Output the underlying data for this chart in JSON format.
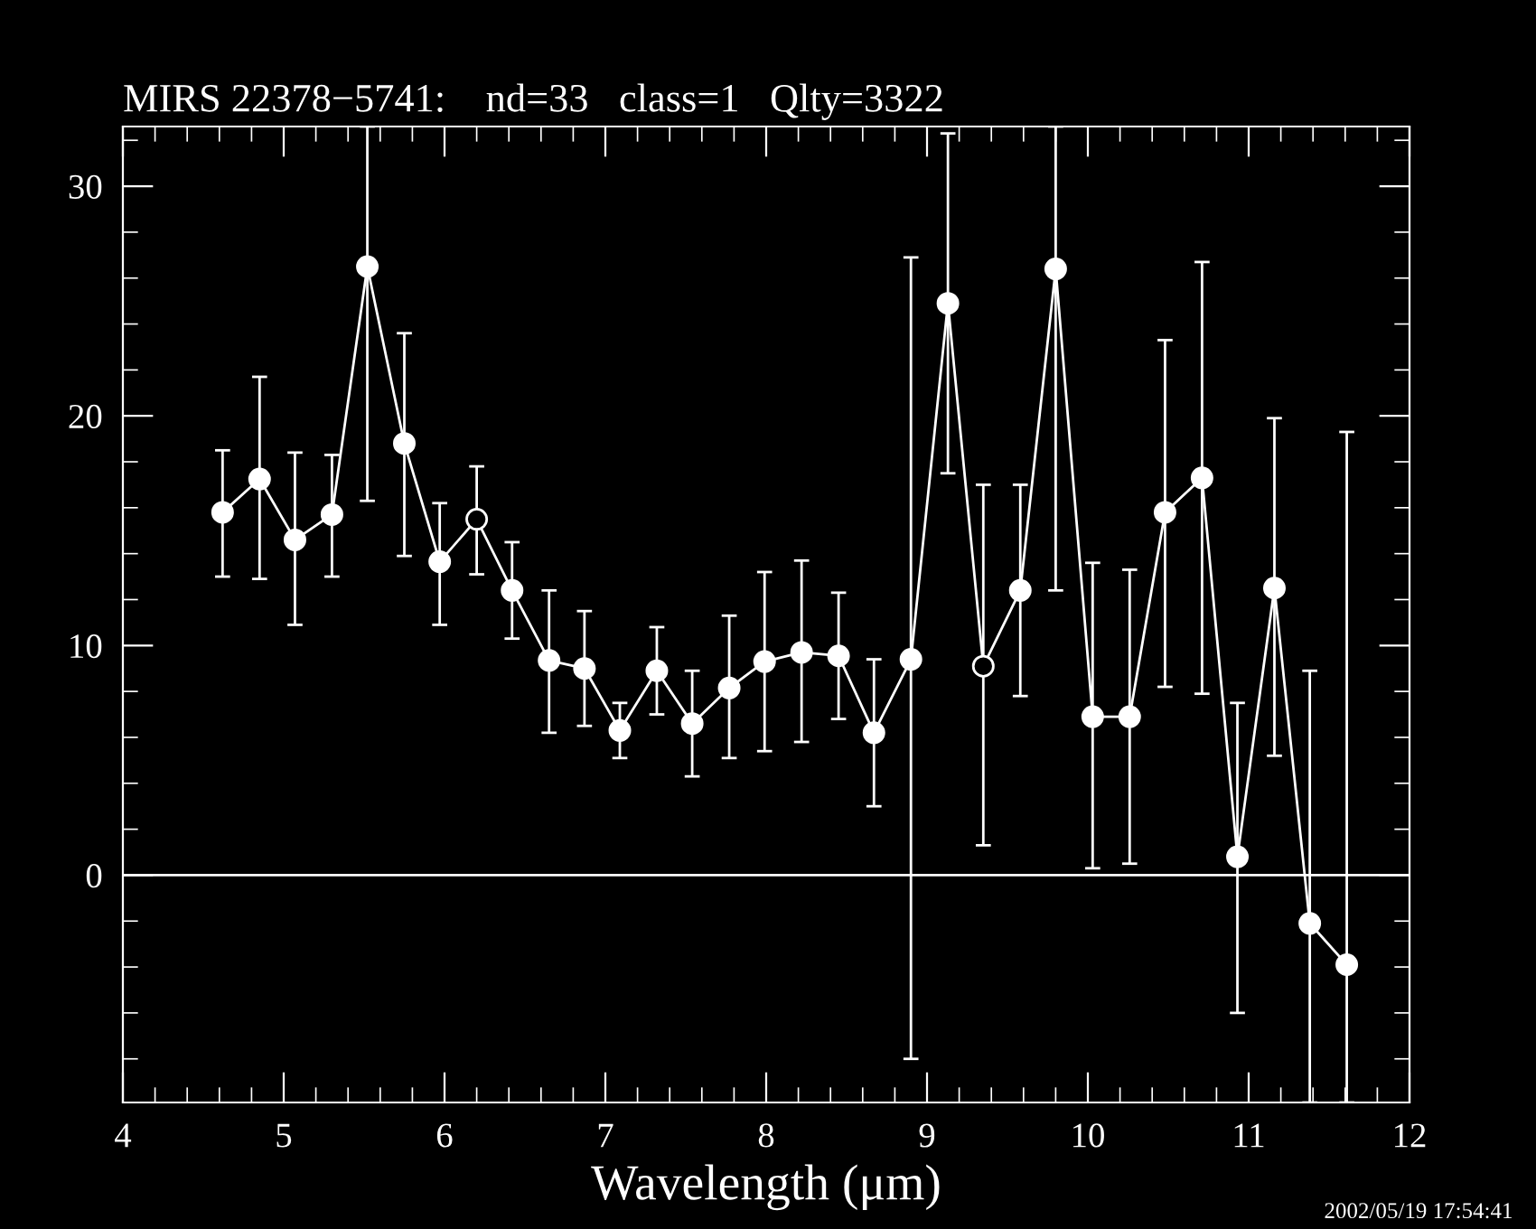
{
  "chart_data": {
    "type": "line",
    "title": "MIRS 22378−5741:    nd=33   class=1   Qlty=3322",
    "xlabel": "Wavelength (μm)",
    "annotations": [
      "2002/05/19 17:54:41"
    ],
    "x": [
      4.62,
      4.85,
      5.07,
      5.3,
      5.52,
      5.75,
      5.97,
      6.2,
      6.42,
      6.65,
      6.87,
      7.09,
      7.32,
      7.54,
      7.77,
      7.99,
      8.22,
      8.45,
      8.67,
      8.9,
      9.13,
      9.35,
      9.58,
      9.8,
      10.03,
      10.26,
      10.48,
      10.71,
      10.93,
      11.16,
      11.38,
      11.61
    ],
    "series": [
      {
        "color": "#ffffff",
        "marker": "circle",
        "values": [
          15.8,
          17.25,
          14.6,
          15.7,
          26.5,
          18.8,
          13.65,
          15.5,
          12.4,
          9.35,
          9.0,
          6.3,
          8.9,
          6.6,
          8.15,
          9.3,
          9.7,
          9.55,
          6.2,
          9.4,
          24.9,
          9.1,
          12.4,
          26.4,
          6.9,
          6.9,
          15.8,
          17.3,
          0.8,
          12.5,
          -2.1,
          -3.9
        ],
        "errors": [
          [
            13.0,
            18.5
          ],
          [
            12.9,
            21.7
          ],
          [
            10.9,
            18.4
          ],
          [
            13.0,
            18.3
          ],
          [
            16.3,
            32.6
          ],
          [
            13.9,
            23.6
          ],
          [
            10.9,
            16.2
          ],
          [
            13.1,
            17.8
          ],
          [
            10.3,
            14.5
          ],
          [
            6.2,
            12.4
          ],
          [
            6.5,
            11.5
          ],
          [
            5.1,
            7.5
          ],
          [
            7.0,
            10.8
          ],
          [
            4.3,
            8.9
          ],
          [
            5.1,
            11.3
          ],
          [
            5.4,
            13.2
          ],
          [
            5.8,
            13.7
          ],
          [
            6.8,
            12.3
          ],
          [
            3.0,
            9.4
          ],
          [
            -8.0,
            26.9
          ],
          [
            17.5,
            32.3
          ],
          [
            1.3,
            17.0
          ],
          [
            7.8,
            17.0
          ],
          [
            12.4,
            32.6
          ],
          [
            0.3,
            13.6
          ],
          [
            0.5,
            13.3
          ],
          [
            8.2,
            23.3
          ],
          [
            7.9,
            26.7
          ],
          [
            -6.0,
            7.5
          ],
          [
            5.2,
            19.9
          ],
          [
            -9.9,
            8.9
          ],
          [
            -9.9,
            19.3
          ]
        ]
      },
      {
        "type": "scatter",
        "color": "#000000",
        "marker": "circle",
        "values": [
          null,
          null,
          null,
          null,
          null,
          null,
          null,
          15.5,
          null,
          null,
          null,
          null,
          null,
          null,
          null,
          null,
          null,
          null,
          null,
          null,
          null,
          9.1,
          null,
          null,
          null,
          null,
          null,
          null,
          null,
          null,
          null,
          null
        ]
      }
    ],
    "xlim": [
      4,
      12
    ],
    "ylim": [
      -9.9,
      32.6
    ],
    "xticks": [
      4,
      5,
      6,
      7,
      8,
      9,
      10,
      11,
      12,
      {
        "value": 4.2,
        "label": null
      },
      {
        "value": 4.4,
        "label": null
      },
      {
        "value": 4.6,
        "label": null
      },
      {
        "value": 4.8,
        "label": null
      },
      {
        "value": 5.2,
        "label": null
      },
      {
        "value": 5.4,
        "label": null
      },
      {
        "value": 5.6,
        "label": null
      },
      {
        "value": 5.8,
        "label": null
      },
      {
        "value": 6.2,
        "label": null
      },
      {
        "value": 6.4,
        "label": null
      },
      {
        "value": 6.6,
        "label": null
      },
      {
        "value": 6.8,
        "label": null
      },
      {
        "value": 7.2,
        "label": null
      },
      {
        "value": 7.4,
        "label": null
      },
      {
        "value": 7.6,
        "label": null
      },
      {
        "value": 7.8,
        "label": null
      },
      {
        "value": 8.2,
        "label": null
      },
      {
        "value": 8.4,
        "label": null
      },
      {
        "value": 8.6,
        "label": null
      },
      {
        "value": 8.8,
        "label": null
      },
      {
        "value": 9.2,
        "label": null
      },
      {
        "value": 9.4,
        "label": null
      },
      {
        "value": 9.6,
        "label": null
      },
      {
        "value": 9.8,
        "label": null
      },
      {
        "value": 10.2,
        "label": null
      },
      {
        "value": 10.4,
        "label": null
      },
      {
        "value": 10.6,
        "label": null
      },
      {
        "value": 10.8,
        "label": null
      },
      {
        "value": 11.2,
        "label": null
      },
      {
        "value": 11.4,
        "label": null
      },
      {
        "value": 11.6,
        "label": null
      },
      {
        "value": 11.8,
        "label": null
      }
    ],
    "yticks": [
      0,
      10,
      20,
      30,
      {
        "value": -8,
        "label": null
      },
      {
        "value": -6,
        "label": null
      },
      {
        "value": -4,
        "label": null
      },
      {
        "value": -2,
        "label": null
      },
      {
        "value": 2,
        "label": null
      },
      {
        "value": 4,
        "label": null
      },
      {
        "value": 6,
        "label": null
      },
      {
        "value": 8,
        "label": null
      },
      {
        "value": 12,
        "label": null
      },
      {
        "value": 14,
        "label": null
      },
      {
        "value": 16,
        "label": null
      },
      {
        "value": 18,
        "label": null
      },
      {
        "value": 22,
        "label": null
      },
      {
        "value": 24,
        "label": null
      },
      {
        "value": 26,
        "label": null
      },
      {
        "value": 28,
        "label": null
      },
      {
        "value": 32,
        "label": null
      }
    ],
    "ref_lines": [
      {
        "axis": "y",
        "value": 0,
        "color": "#ffffff"
      }
    ],
    "grid": false
  }
}
